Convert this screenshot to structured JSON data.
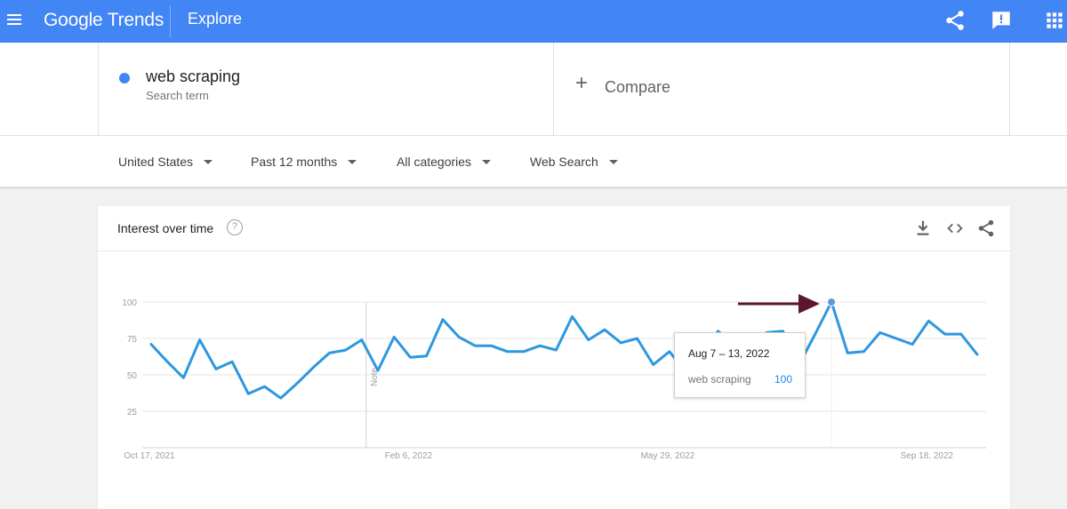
{
  "header": {
    "logo": "Google Trends",
    "title": "Explore",
    "icons": [
      "menu-icon",
      "share-icon",
      "feedback-icon",
      "apps-icon"
    ],
    "color": "#4285f4"
  },
  "search_term": {
    "name": "web scraping",
    "type": "Search term",
    "color": "#4285f4"
  },
  "compare": {
    "plus": "+",
    "label": "Compare"
  },
  "filters": [
    {
      "label": "United States"
    },
    {
      "label": "Past 12 months"
    },
    {
      "label": "All categories"
    },
    {
      "label": "Web Search"
    }
  ],
  "card": {
    "title": "Interest over time",
    "help": "?",
    "actions": [
      "download-icon",
      "embed-icon",
      "share-icon"
    ]
  },
  "tooltip": {
    "date": "Aug 7 – 13, 2022",
    "term": "web scraping",
    "value": "100"
  },
  "chart_data": {
    "type": "line",
    "y_ticks": [
      100,
      75,
      50,
      25
    ],
    "x_tick_labels": [
      "Oct 17, 2021",
      "Feb 6, 2022",
      "May 29, 2022",
      "Sep 18, 2022"
    ],
    "x_tick_index": [
      0,
      16,
      32,
      48
    ],
    "note_label": "Note",
    "note_index": 13,
    "highlight_index": 42,
    "ylim": [
      0,
      100
    ],
    "series": [
      {
        "name": "web scraping",
        "color": "#2d97e0",
        "values": [
          71,
          59,
          48,
          74,
          54,
          59,
          37,
          42,
          34,
          44,
          55,
          65,
          67,
          74,
          53,
          76,
          62,
          63,
          88,
          76,
          70,
          70,
          66,
          66,
          70,
          67,
          90,
          74,
          81,
          72,
          75,
          57,
          66,
          52,
          62,
          80,
          71,
          66,
          79,
          80,
          57,
          78,
          100,
          65,
          66,
          79,
          75,
          71,
          87,
          78,
          78,
          64
        ]
      }
    ]
  },
  "annotation": {
    "arrow_color": "#5c1631"
  }
}
